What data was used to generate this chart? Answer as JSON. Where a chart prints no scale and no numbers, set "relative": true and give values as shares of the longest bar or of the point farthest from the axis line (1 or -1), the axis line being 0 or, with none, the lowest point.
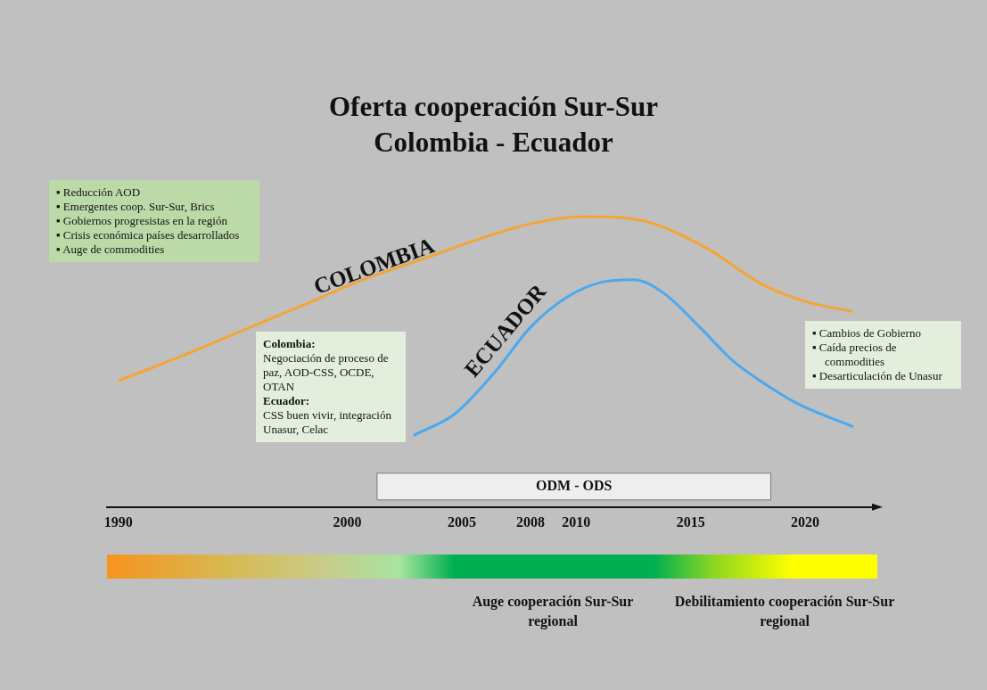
{
  "chart_data": {
    "type": "line",
    "title": "Oferta cooperación Sur-Sur\nColombia - Ecuador",
    "relative": true,
    "grid": false,
    "legend": false,
    "marker": "none",
    "line_style": "solid",
    "xlim": [
      1989.5,
      2023
    ],
    "xticks": [
      1990,
      2000,
      2005,
      2008,
      2010,
      2015,
      2020
    ],
    "series": [
      {
        "name": "COLOMBIA",
        "color": "#f4a534",
        "x": [
          1990,
          1992.6,
          1995.3,
          1998,
          2000.7,
          2003.4,
          2006.1,
          2008,
          2009.6,
          2010.3,
          2011.9,
          2013.4,
          2015.8,
          2018.1,
          2020,
          2022.1
        ],
        "values": [
          0.435,
          0.515,
          0.604,
          0.693,
          0.783,
          0.857,
          0.932,
          0.976,
          0.997,
          1,
          0.997,
          0.976,
          0.887,
          0.768,
          0.708,
          0.673
        ]
      },
      {
        "name": "ECUADOR",
        "color": "#4aa8f0",
        "x": [
          2002.9,
          2004.7,
          2006.5,
          2008,
          2009.6,
          2011.1,
          2012.5,
          2013.8,
          2015.4,
          2016.9,
          2018.5,
          2019.8,
          2022.1
        ],
        "values": [
          0.247,
          0.321,
          0.47,
          0.619,
          0.723,
          0.774,
          0.783,
          0.738,
          0.619,
          0.5,
          0.411,
          0.351,
          0.277
        ]
      }
    ],
    "bands": [
      {
        "axis": "x",
        "from": 2001.3,
        "to": 2018.5,
        "label": "ODM - ODS",
        "color": "#eeeeee"
      }
    ],
    "annotations": [
      "▪ Reducción AOD\n▪ Emergentes coop. Sur-Sur, Brics\n▪ Gobiernos progresistas en la región\n▪ Crisis económica países desarrollados\n▪ Auge de commodities",
      "Colombia:\nNegociación de proceso de paz, AOD-CSS, OCDE, OTAN\nEcuador:\nCSS buen vivir, integración Unasur, Celac",
      "▪ Cambios de Gobierno\n▪ Caída precios de commodities\n▪ Desarticulación de Unasur",
      "Auge cooperación Sur-Sur regional",
      "Debilitamiento cooperación Sur-Sur regional"
    ]
  }
}
